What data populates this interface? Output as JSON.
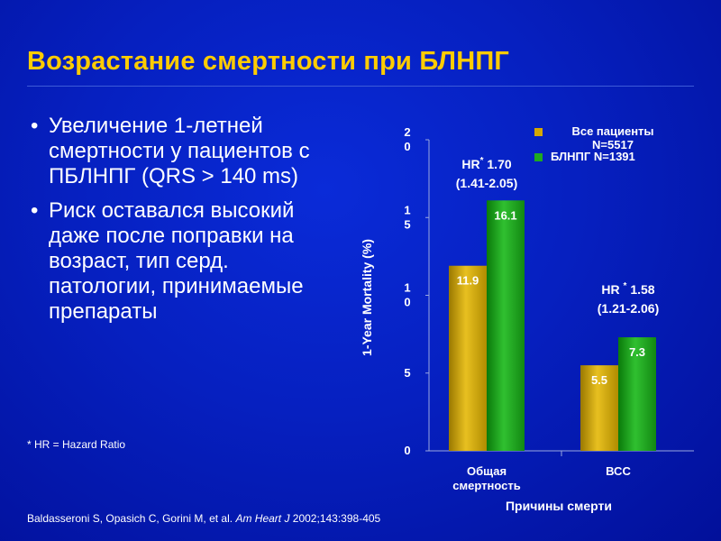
{
  "title": "Возрастание смертности при БЛНПГ",
  "bullets": [
    "Увеличение 1-летней смертности у пациентов с ПБЛНПГ (QRS > 140 ms)",
    "Риск оставался высокий даже после поправки на возраст, тип серд. патологии, принимаемые препараты"
  ],
  "footnote": "* HR = Hazard Ratio",
  "citation": {
    "authors": "Baldasseroni S, Opasich C, Gorini M, et al. ",
    "journal": "Am Heart J",
    "rest": " 2002;143:398-405"
  },
  "colors": {
    "background": "#0620c0",
    "title": "#ffcc00",
    "series_all": "#d4a800",
    "series_lbbb": "#1faa1f"
  },
  "chart_data": {
    "type": "bar",
    "categories": [
      "Общая смертность",
      "ВСС"
    ],
    "series": [
      {
        "name": "Все пациенты N=5517",
        "values": [
          11.9,
          5.5
        ]
      },
      {
        "name": "БЛНПГ N=1391",
        "values": [
          16.1,
          7.3
        ]
      }
    ],
    "ylabel": "1-Year Mortality (%)",
    "xlabel": "Причины смерти",
    "ylim": [
      0,
      20
    ],
    "yticks": [
      "0",
      "5",
      "10",
      "15",
      "20"
    ],
    "legend_position": "top-right",
    "annotations": [
      {
        "line1": "HR",
        "sup": "*",
        "line1b": " 1.70",
        "line2": "(1.41-2.05)"
      },
      {
        "line1": "HR ",
        "sup": "*",
        "line1b": " 1.58",
        "line2": "(1.21-2.06)"
      }
    ]
  }
}
